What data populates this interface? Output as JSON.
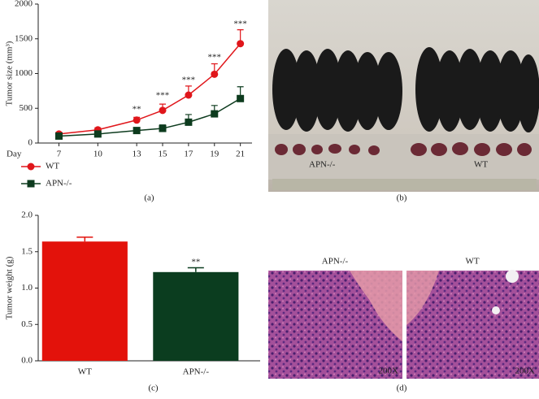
{
  "chart_data": [
    {
      "type": "line",
      "ylabel": "Tumor size (mm³)",
      "xlabel": "Day",
      "x": [
        7,
        10,
        13,
        15,
        17,
        19,
        21
      ],
      "xlim": [
        5.4,
        21.9
      ],
      "xticks": [
        7,
        10,
        13,
        15,
        17,
        19,
        21
      ],
      "ylim": [
        0,
        2000
      ],
      "yticks": [
        0,
        500,
        1000,
        1500,
        2000
      ],
      "series": [
        {
          "name": "WT",
          "color": "#e0161b",
          "marker": "circle",
          "values": [
            130,
            190,
            330,
            470,
            690,
            990,
            1430
          ],
          "errors": [
            25,
            30,
            40,
            90,
            130,
            150,
            200
          ]
        },
        {
          "name": "APN-/-",
          "color": "#0d3b1e",
          "marker": "square",
          "values": [
            100,
            130,
            180,
            210,
            300,
            420,
            640
          ],
          "errors": [
            20,
            25,
            40,
            50,
            110,
            120,
            170
          ]
        }
      ],
      "annotations": [
        {
          "x": 13,
          "y": 480,
          "text": "**"
        },
        {
          "x": 15,
          "y": 680,
          "text": "***"
        },
        {
          "x": 17,
          "y": 900,
          "text": "***"
        },
        {
          "x": 19,
          "y": 1230,
          "text": "***"
        },
        {
          "x": 21,
          "y": 1710,
          "text": "***"
        }
      ],
      "panel_label": "(a)"
    },
    {
      "type": "bar",
      "ylabel": "Tumor weight (g)",
      "categories": [
        "WT",
        "APN-/-"
      ],
      "values": [
        1.64,
        1.22
      ],
      "errors": [
        0.06,
        0.06
      ],
      "colors": [
        "#e3120b",
        "#0b3d1f"
      ],
      "ylim": [
        0,
        2.0
      ],
      "yticks": [
        {
          "value": 0,
          "label": "0.0"
        },
        {
          "value": 0.5,
          "label": "0.5"
        },
        {
          "value": 1.0,
          "label": "1.0"
        },
        {
          "value": 1.5,
          "label": "1.5"
        },
        {
          "value": 2.0,
          "label": "2.0"
        }
      ],
      "annotations": [
        {
          "category": 1,
          "y": 1.35,
          "text": "**"
        }
      ],
      "panel_label": "(c)"
    }
  ],
  "photo_b": {
    "left_label": "APN-/-",
    "right_label": "WT",
    "panel_label": "(b)"
  },
  "photo_d": {
    "left_title": "APN-/-",
    "right_title": "WT",
    "left_mag": "200X",
    "right_mag": "200X",
    "panel_label": "(d)"
  }
}
